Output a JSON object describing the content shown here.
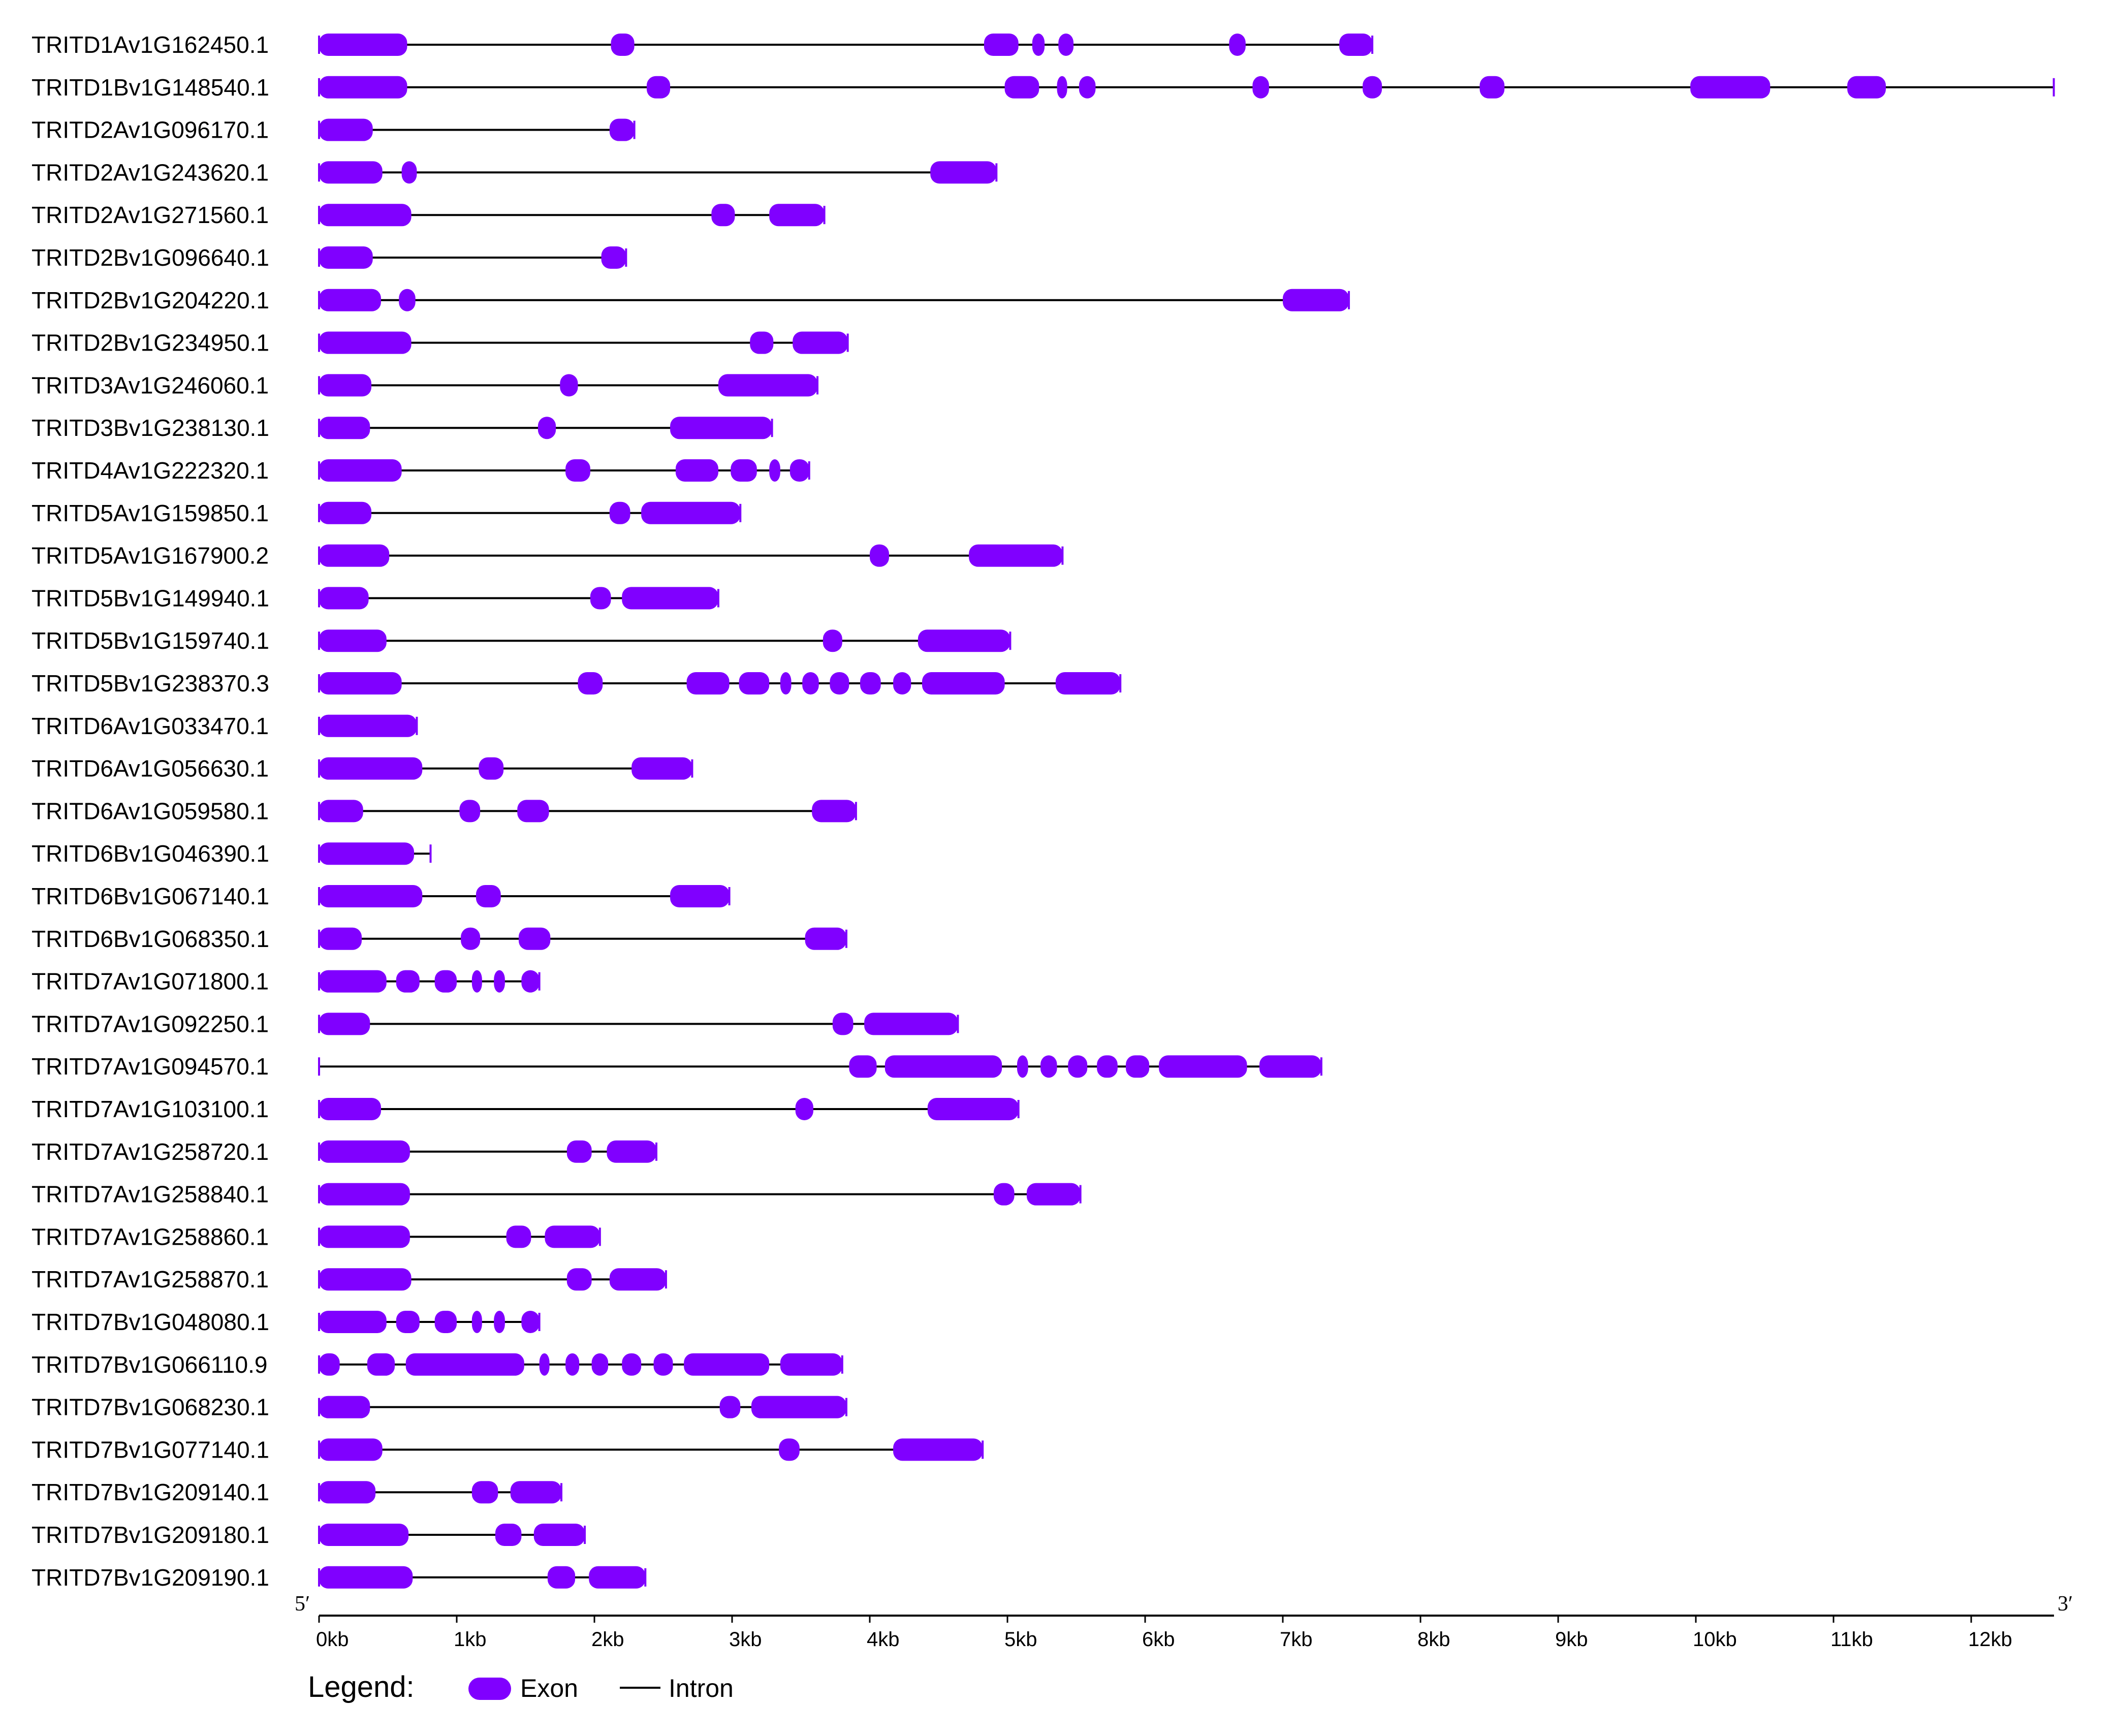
{
  "colors": {
    "exon": "#8000ff",
    "intron": "#000000",
    "axis": "#000000"
  },
  "axis": {
    "unit": "kb",
    "range": [
      0,
      12.6
    ],
    "ticks": [
      "0kb",
      "1kb",
      "2kb",
      "3kb",
      "4kb",
      "5kb",
      "6kb",
      "7kb",
      "8kb",
      "9kb",
      "10kb",
      "11kb",
      "12kb"
    ],
    "left_end_label": "5′",
    "right_end_label": "3′"
  },
  "legend": {
    "title": "Legend:",
    "exon_label": "Exon",
    "intron_label": "Intron"
  },
  "genes": [
    {
      "name": "TRITD1Av1G162450.1",
      "length": 7.65,
      "exons": [
        [
          0.0,
          0.64
        ],
        [
          2.12,
          2.29
        ],
        [
          4.83,
          5.08
        ],
        [
          5.18,
          5.27
        ],
        [
          5.37,
          5.48
        ],
        [
          6.61,
          6.73
        ],
        [
          7.41,
          7.65
        ]
      ]
    },
    {
      "name": "TRITD1Bv1G148540.1",
      "length": 12.6,
      "exons": [
        [
          0.0,
          0.64
        ],
        [
          2.38,
          2.55
        ],
        [
          4.98,
          5.23
        ],
        [
          5.36,
          5.43
        ],
        [
          5.52,
          5.64
        ],
        [
          6.78,
          6.9
        ],
        [
          7.58,
          7.72
        ],
        [
          8.43,
          8.61
        ],
        [
          9.96,
          10.54
        ],
        [
          11.1,
          11.38
        ]
      ]
    },
    {
      "name": "TRITD2Av1G096170.1",
      "length": 2.29,
      "exons": [
        [
          0.0,
          0.39
        ],
        [
          2.11,
          2.29
        ]
      ]
    },
    {
      "name": "TRITD2Av1G243620.1",
      "length": 4.92,
      "exons": [
        [
          0.0,
          0.46
        ],
        [
          0.6,
          0.71
        ],
        [
          4.44,
          4.92
        ]
      ]
    },
    {
      "name": "TRITD2Av1G271560.1",
      "length": 3.67,
      "exons": [
        [
          0.0,
          0.67
        ],
        [
          2.85,
          3.02
        ],
        [
          3.27,
          3.67
        ]
      ]
    },
    {
      "name": "TRITD2Bv1G096640.1",
      "length": 2.23,
      "exons": [
        [
          0.0,
          0.39
        ],
        [
          2.05,
          2.23
        ]
      ]
    },
    {
      "name": "TRITD2Bv1G204220.1",
      "length": 7.48,
      "exons": [
        [
          0.0,
          0.45
        ],
        [
          0.58,
          0.7
        ],
        [
          7.0,
          7.48
        ]
      ]
    },
    {
      "name": "TRITD2Bv1G234950.1",
      "length": 3.84,
      "exons": [
        [
          0.0,
          0.67
        ],
        [
          3.13,
          3.3
        ],
        [
          3.44,
          3.84
        ]
      ]
    },
    {
      "name": "TRITD3Av1G246060.1",
      "length": 3.62,
      "exons": [
        [
          0.0,
          0.38
        ],
        [
          1.75,
          1.88
        ],
        [
          2.9,
          3.62
        ]
      ]
    },
    {
      "name": "TRITD3Bv1G238130.1",
      "length": 3.29,
      "exons": [
        [
          0.0,
          0.37
        ],
        [
          1.59,
          1.72
        ],
        [
          2.55,
          3.29
        ]
      ]
    },
    {
      "name": "TRITD4Av1G222320.1",
      "length": 3.56,
      "exons": [
        [
          0.0,
          0.6
        ],
        [
          1.79,
          1.97
        ],
        [
          2.59,
          2.9
        ],
        [
          2.99,
          3.18
        ],
        [
          3.27,
          3.35
        ],
        [
          3.42,
          3.56
        ]
      ]
    },
    {
      "name": "TRITD5Av1G159850.1",
      "length": 3.06,
      "exons": [
        [
          0.0,
          0.38
        ],
        [
          2.11,
          2.26
        ],
        [
          2.34,
          3.06
        ]
      ]
    },
    {
      "name": "TRITD5Av1G167900.2",
      "length": 5.4,
      "exons": [
        [
          0.0,
          0.51
        ],
        [
          4.0,
          4.14
        ],
        [
          4.72,
          5.4
        ]
      ]
    },
    {
      "name": "TRITD5Bv1G149940.1",
      "length": 2.9,
      "exons": [
        [
          0.0,
          0.36
        ],
        [
          1.97,
          2.12
        ],
        [
          2.2,
          2.9
        ]
      ]
    },
    {
      "name": "TRITD5Bv1G159740.1",
      "length": 5.02,
      "exons": [
        [
          0.0,
          0.49
        ],
        [
          3.66,
          3.8
        ],
        [
          4.35,
          5.02
        ]
      ]
    },
    {
      "name": "TRITD5Bv1G238370.3",
      "length": 5.82,
      "exons": [
        [
          0.0,
          0.6
        ],
        [
          1.88,
          2.06
        ],
        [
          2.67,
          2.98
        ],
        [
          3.05,
          3.27
        ],
        [
          3.35,
          3.43
        ],
        [
          3.51,
          3.63
        ],
        [
          3.71,
          3.85
        ],
        [
          3.93,
          4.08
        ],
        [
          4.17,
          4.3
        ],
        [
          4.38,
          4.98
        ],
        [
          5.35,
          5.82
        ]
      ]
    },
    {
      "name": "TRITD6Av1G033470.1",
      "length": 0.71,
      "exons": [
        [
          0.0,
          0.71
        ]
      ]
    },
    {
      "name": "TRITD6Av1G056630.1",
      "length": 2.71,
      "exons": [
        [
          0.0,
          0.75
        ],
        [
          1.16,
          1.34
        ],
        [
          2.27,
          2.71
        ]
      ]
    },
    {
      "name": "TRITD6Av1G059580.1",
      "length": 3.9,
      "exons": [
        [
          0.0,
          0.32
        ],
        [
          1.02,
          1.17
        ],
        [
          1.44,
          1.67
        ],
        [
          3.58,
          3.9
        ]
      ]
    },
    {
      "name": "TRITD6Bv1G046390.1",
      "length": 0.81,
      "exons": [
        [
          0.0,
          0.69
        ]
      ]
    },
    {
      "name": "TRITD6Bv1G067140.1",
      "length": 2.98,
      "exons": [
        [
          0.0,
          0.75
        ],
        [
          1.14,
          1.32
        ],
        [
          2.55,
          2.98
        ]
      ]
    },
    {
      "name": "TRITD6Bv1G068350.1",
      "length": 3.83,
      "exons": [
        [
          0.0,
          0.31
        ],
        [
          1.03,
          1.17
        ],
        [
          1.45,
          1.68
        ],
        [
          3.53,
          3.83
        ]
      ]
    },
    {
      "name": "TRITD7Av1G071800.1",
      "length": 1.6,
      "exons": [
        [
          0.0,
          0.49
        ],
        [
          0.56,
          0.73
        ],
        [
          0.84,
          1.0
        ],
        [
          1.11,
          1.18
        ],
        [
          1.27,
          1.35
        ],
        [
          1.47,
          1.6
        ]
      ]
    },
    {
      "name": "TRITD7Av1G092250.1",
      "length": 4.64,
      "exons": [
        [
          0.0,
          0.37
        ],
        [
          3.73,
          3.88
        ],
        [
          3.96,
          4.64
        ]
      ]
    },
    {
      "name": "TRITD7Av1G094570.1",
      "length": 7.28,
      "exons": [
        [
          3.85,
          4.05
        ],
        [
          4.11,
          4.96
        ],
        [
          5.07,
          5.15
        ],
        [
          5.24,
          5.36
        ],
        [
          5.44,
          5.58
        ],
        [
          5.65,
          5.8
        ],
        [
          5.86,
          6.03
        ],
        [
          6.1,
          6.74
        ],
        [
          6.83,
          7.28
        ]
      ]
    },
    {
      "name": "TRITD7Av1G103100.1",
      "length": 5.08,
      "exons": [
        [
          0.0,
          0.45
        ],
        [
          3.46,
          3.59
        ],
        [
          4.42,
          5.08
        ]
      ]
    },
    {
      "name": "TRITD7Av1G258720.1",
      "length": 2.45,
      "exons": [
        [
          0.0,
          0.66
        ],
        [
          1.8,
          1.98
        ],
        [
          2.09,
          2.45
        ]
      ]
    },
    {
      "name": "TRITD7Av1G258840.1",
      "length": 5.53,
      "exons": [
        [
          0.0,
          0.66
        ],
        [
          4.9,
          5.05
        ],
        [
          5.14,
          5.53
        ]
      ]
    },
    {
      "name": "TRITD7Av1G258860.1",
      "length": 2.04,
      "exons": [
        [
          0.0,
          0.66
        ],
        [
          1.36,
          1.54
        ],
        [
          1.64,
          2.04
        ]
      ]
    },
    {
      "name": "TRITD7Av1G258870.1",
      "length": 2.52,
      "exons": [
        [
          0.0,
          0.67
        ],
        [
          1.8,
          1.98
        ],
        [
          2.11,
          2.52
        ]
      ]
    },
    {
      "name": "TRITD7Bv1G048080.1",
      "length": 1.6,
      "exons": [
        [
          0.0,
          0.49
        ],
        [
          0.56,
          0.73
        ],
        [
          0.84,
          1.0
        ],
        [
          1.11,
          1.18
        ],
        [
          1.27,
          1.35
        ],
        [
          1.47,
          1.6
        ]
      ]
    },
    {
      "name": "TRITD7Bv1G066110.9",
      "length": 3.8,
      "exons": [
        [
          0.0,
          0.15
        ],
        [
          0.35,
          0.55
        ],
        [
          0.63,
          1.49
        ],
        [
          1.6,
          1.67
        ],
        [
          1.79,
          1.89
        ],
        [
          1.98,
          2.1
        ],
        [
          2.2,
          2.34
        ],
        [
          2.43,
          2.57
        ],
        [
          2.65,
          3.27
        ],
        [
          3.35,
          3.8
        ]
      ]
    },
    {
      "name": "TRITD7Bv1G068230.1",
      "length": 3.83,
      "exons": [
        [
          0.0,
          0.37
        ],
        [
          2.91,
          3.06
        ],
        [
          3.14,
          3.83
        ]
      ]
    },
    {
      "name": "TRITD7Bv1G077140.1",
      "length": 4.82,
      "exons": [
        [
          0.0,
          0.46
        ],
        [
          3.34,
          3.49
        ],
        [
          4.17,
          4.82
        ]
      ]
    },
    {
      "name": "TRITD7Bv1G209140.1",
      "length": 1.76,
      "exons": [
        [
          0.0,
          0.41
        ],
        [
          1.11,
          1.3
        ],
        [
          1.39,
          1.76
        ]
      ]
    },
    {
      "name": "TRITD7Bv1G209180.1",
      "length": 1.93,
      "exons": [
        [
          0.0,
          0.65
        ],
        [
          1.28,
          1.47
        ],
        [
          1.56,
          1.93
        ]
      ]
    },
    {
      "name": "TRITD7Bv1G209190.1",
      "length": 2.37,
      "exons": [
        [
          0.0,
          0.68
        ],
        [
          1.66,
          1.86
        ],
        [
          1.96,
          2.37
        ]
      ]
    }
  ]
}
